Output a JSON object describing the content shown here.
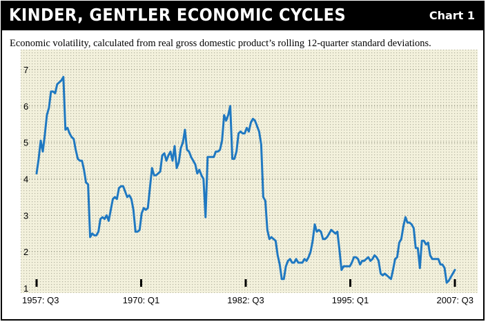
{
  "header": {
    "title": "KINDER, GENTLER ECONOMIC CYCLES",
    "chart_number": "Chart 1"
  },
  "colors": {
    "header_bg": "#000000",
    "plot_bg": "#f3f1dc",
    "grid_dot": "#9a9a86",
    "line": "#1f78c1"
  },
  "chart_data": {
    "type": "line",
    "title": "KINDER, GENTLER ECONOMIC CYCLES",
    "subtitle": "Economic volatility, calculated from real gross domestic product’s  rolling 12-quarter standard deviations.",
    "xlabel": "",
    "ylabel": "",
    "ylim": [
      1,
      7
    ],
    "yticks": [
      1,
      2,
      3,
      4,
      5,
      6,
      7
    ],
    "xlim": [
      0,
      200
    ],
    "xticks": [
      {
        "label": "1957: Q3",
        "quarter_index": 0
      },
      {
        "label": "1970: Q1",
        "quarter_index": 50
      },
      {
        "label": "1982: Q3",
        "quarter_index": 100
      },
      {
        "label": "1995: Q1",
        "quarter_index": 150
      },
      {
        "label": "2007: Q3",
        "quarter_index": 200
      }
    ],
    "grid": true,
    "legend": "none",
    "series": [
      {
        "values": [
          4.15,
          4.55,
          5.05,
          4.75,
          5.2,
          5.75,
          5.95,
          6.4,
          6.4,
          6.35,
          6.6,
          6.65,
          6.7,
          6.8,
          5.35,
          5.4,
          5.25,
          5.15,
          5.1,
          4.8,
          4.55,
          4.5,
          4.5,
          4.25,
          3.9,
          3.85,
          2.4,
          2.5,
          2.45,
          2.45,
          2.55,
          2.9,
          2.95,
          2.9,
          3.0,
          2.85,
          3.15,
          3.45,
          3.5,
          3.45,
          3.75,
          3.8,
          3.8,
          3.65,
          3.5,
          3.55,
          3.45,
          3.15,
          2.55,
          2.55,
          2.6,
          3.05,
          3.2,
          3.15,
          3.2,
          3.75,
          4.3,
          4.1,
          4.1,
          4.15,
          4.2,
          4.65,
          4.7,
          4.5,
          4.65,
          4.75,
          4.5,
          4.9,
          4.3,
          4.45,
          4.85,
          5.0,
          5.35,
          4.8,
          4.75,
          4.6,
          4.5,
          4.4,
          4.15,
          4.25,
          4.1,
          4.0,
          2.95,
          4.6,
          4.6,
          4.6,
          4.6,
          4.75,
          4.75,
          4.8,
          5.05,
          5.75,
          5.6,
          5.75,
          6.0,
          4.55,
          4.55,
          4.75,
          5.25,
          5.3,
          5.25,
          5.25,
          5.4,
          5.3,
          5.55,
          5.65,
          5.6,
          5.45,
          5.3,
          4.95,
          3.5,
          3.4,
          2.6,
          2.35,
          2.4,
          2.35,
          2.3,
          1.9,
          1.65,
          1.25,
          1.25,
          1.6,
          1.75,
          1.8,
          1.7,
          1.7,
          1.8,
          1.7,
          1.7,
          1.7,
          1.8,
          1.75,
          1.85,
          2.0,
          2.3,
          2.75,
          2.55,
          2.6,
          2.55,
          2.35,
          2.35,
          2.4,
          2.5,
          2.6,
          2.55,
          2.5,
          2.55,
          2.05,
          1.5,
          1.6,
          1.6,
          1.6,
          1.6,
          1.7,
          1.85,
          1.85,
          1.8,
          1.65,
          1.75,
          1.75,
          1.8,
          1.85,
          1.75,
          1.8,
          1.9,
          1.85,
          1.75,
          1.4,
          1.35,
          1.4,
          1.35,
          1.3,
          1.25,
          1.5,
          1.8,
          1.85,
          2.25,
          2.35,
          2.7,
          2.95,
          2.8,
          2.8,
          2.75,
          2.65,
          2.1,
          2.1,
          1.55,
          2.3,
          2.3,
          2.2,
          2.25,
          1.9,
          1.8,
          1.8,
          1.8,
          1.8,
          1.65,
          1.65,
          1.55,
          1.15,
          1.2,
          1.3,
          1.4,
          1.5
        ]
      }
    ]
  }
}
